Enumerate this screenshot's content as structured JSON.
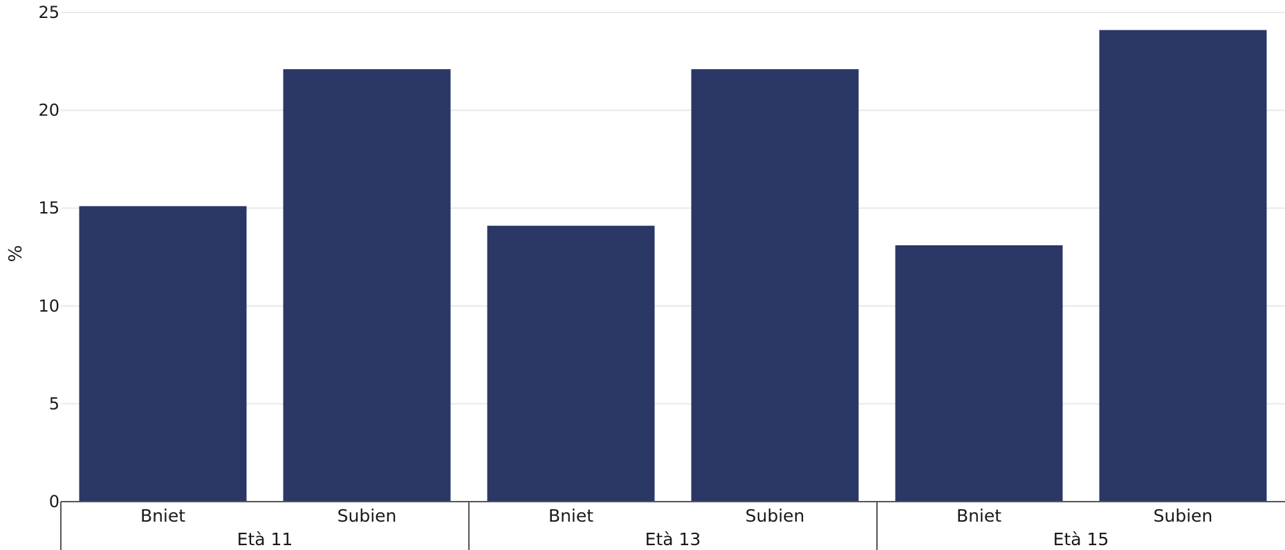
{
  "chart_data": {
    "type": "bar",
    "ylabel": "%",
    "ylim": [
      0,
      25
    ],
    "yticks": [
      0,
      5,
      10,
      15,
      20,
      25
    ],
    "grid": true,
    "bar_color": "#2b3765",
    "groups": [
      {
        "label": "Età 11",
        "categories": [
          "Bniet",
          "Subien"
        ],
        "values": [
          15.1,
          22.1
        ]
      },
      {
        "label": "Età 13",
        "categories": [
          "Bniet",
          "Subien"
        ],
        "values": [
          14.1,
          22.1
        ]
      },
      {
        "label": "Età 15",
        "categories": [
          "Bniet",
          "Subien"
        ],
        "values": [
          13.1,
          24.1
        ]
      }
    ]
  }
}
